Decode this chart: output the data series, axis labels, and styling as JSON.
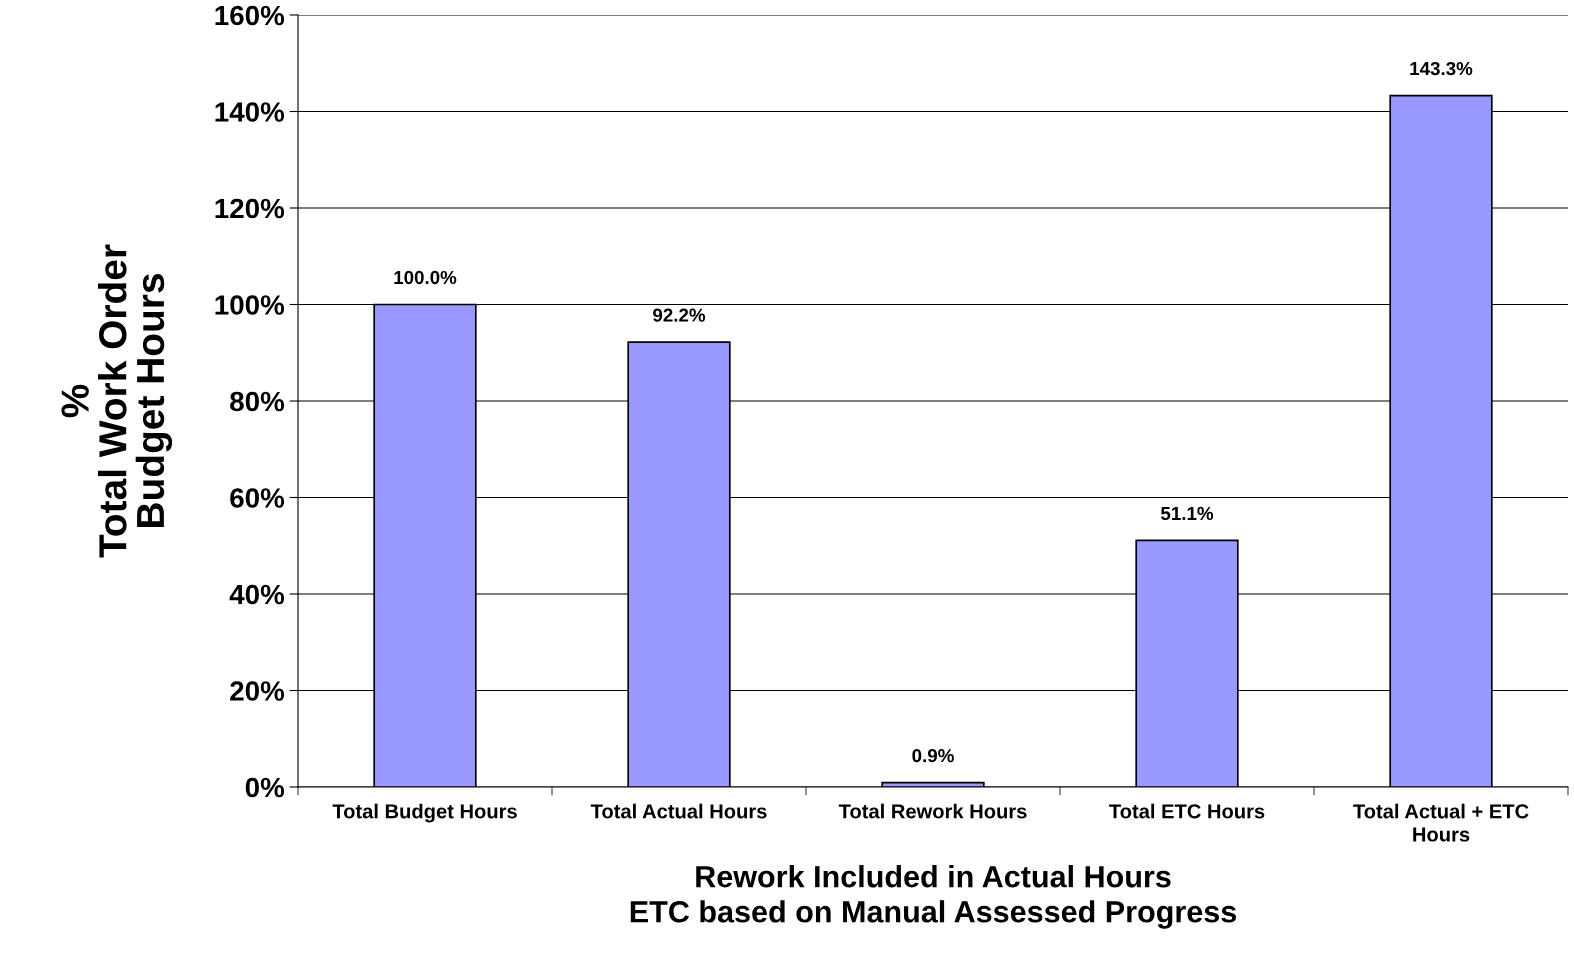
{
  "chart_data": {
    "type": "bar",
    "xlabel": "Rework Included in Actual Hours\nETC based on Manual Assessed Progress",
    "ylabel": "%\nTotal Work Order\nBudget Hours",
    "categories": [
      "Total Budget Hours",
      "Total Actual Hours",
      "Total Rework Hours",
      "Total ETC Hours",
      "Total Actual + ETC\nHours"
    ],
    "values": [
      100.0,
      92.2,
      0.9,
      51.1,
      143.3
    ],
    "value_labels": [
      "100.0%",
      "92.2%",
      "0.9%",
      "51.1%",
      "143.3%"
    ],
    "color": "#9999ff",
    "ylim": [
      0,
      160
    ],
    "yticks": [
      {
        "value": 0,
        "label": "0%"
      },
      {
        "value": 20,
        "label": "20%"
      },
      {
        "value": 40,
        "label": "40%"
      },
      {
        "value": 60,
        "label": "60%"
      },
      {
        "value": 80,
        "label": "80%"
      },
      {
        "value": 100,
        "label": "100%"
      },
      {
        "value": 120,
        "label": "120%"
      },
      {
        "value": 140,
        "label": "140%"
      },
      {
        "value": 160,
        "label": "160%"
      }
    ],
    "grid": "y"
  }
}
